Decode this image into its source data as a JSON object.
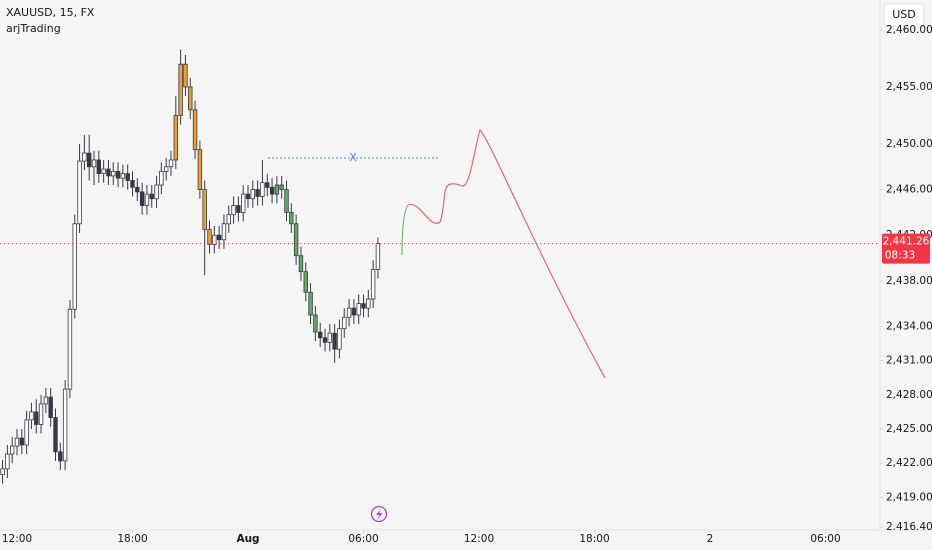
{
  "chart_data": {
    "type": "candlestick",
    "title": "XAUUSD, 15, FX",
    "subtitle": "arjTrading",
    "currency": "USD",
    "drawing_label": "X",
    "last_price_label": "2,441.26",
    "countdown": "08:33",
    "xlim": [
      -0.883,
      44.83
    ],
    "xticks": [
      {
        "value": 0,
        "label": "12:00"
      },
      {
        "value": 6,
        "label": "18:00"
      },
      {
        "value": 12,
        "label": "Aug"
      },
      {
        "value": 18,
        "label": "06:00"
      },
      {
        "value": 24,
        "label": "12:00"
      },
      {
        "value": 30,
        "label": "18:00"
      },
      {
        "value": 36,
        "label": "2"
      },
      {
        "value": 42,
        "label": "06:00"
      }
    ],
    "ylim": [
      2416.14,
      2462.63
    ],
    "yticks": [
      {
        "value": 2460,
        "label": "2,460.00"
      },
      {
        "value": 2455,
        "label": "2,455.00"
      },
      {
        "value": 2450,
        "label": "2,450.00"
      },
      {
        "value": 2446,
        "label": "2,446.00"
      },
      {
        "value": 2442,
        "label": "2,442.00"
      },
      {
        "value": 2438,
        "label": "2,438.00"
      },
      {
        "value": 2434,
        "label": "2,434.00"
      },
      {
        "value": 2431,
        "label": "2,431.00"
      },
      {
        "value": 2428,
        "label": "2,428.00"
      },
      {
        "value": 2425,
        "label": "2,425.00"
      },
      {
        "value": 2422,
        "label": "2,422.00"
      },
      {
        "value": 2419,
        "label": "2,419.00"
      },
      {
        "value": 2416.4,
        "label": "2.416.40"
      }
    ],
    "x": [
      -0.75,
      -0.5,
      -0.25,
      0,
      0.25,
      0.5,
      0.75,
      1,
      1.25,
      1.5,
      1.75,
      2,
      2.25,
      2.5,
      2.75,
      3,
      3.25,
      3.5,
      3.75,
      4,
      4.25,
      4.5,
      4.75,
      5,
      5.25,
      5.5,
      5.75,
      6,
      6.25,
      6.5,
      6.75,
      7,
      7.25,
      7.5,
      7.75,
      8,
      8.25,
      8.5,
      8.75,
      9,
      9.25,
      9.5,
      9.75,
      10,
      10.25,
      10.5,
      10.75,
      11,
      11.25,
      11.5,
      11.75,
      12,
      12.25,
      12.5,
      12.75,
      13,
      13.25,
      13.5,
      13.75,
      14,
      14.25,
      14.5,
      14.75,
      15,
      15.25,
      15.5,
      15.75,
      16,
      16.25,
      16.5,
      16.75,
      17,
      17.25,
      17.5,
      17.75,
      18,
      18.25,
      18.5,
      18.75
    ],
    "open": [
      2421.0,
      2421.5,
      2422.8,
      2423.5,
      2424.2,
      2423.6,
      2425.8,
      2426.5,
      2425.4,
      2427.2,
      2427.8,
      2426.0,
      2423.0,
      2422.2,
      2428.5,
      2435.5,
      2443.0,
      2448.5,
      2449.2,
      2448.0,
      2448.6,
      2447.4,
      2447.8,
      2447.2,
      2447.6,
      2447.0,
      2447.4,
      2446.8,
      2446.2,
      2445.8,
      2444.6,
      2445.6,
      2445.2,
      2446.4,
      2447.6,
      2448.0,
      2448.6,
      2452.5,
      2457.0,
      2455.0,
      2453.0,
      2449.5,
      2446.0,
      2442.5,
      2441.2,
      2442.0,
      2441.6,
      2443.0,
      2443.8,
      2444.6,
      2444.0,
      2445.6,
      2445.2,
      2446.0,
      2445.4,
      2446.6,
      2446.2,
      2445.6,
      2446.4,
      2446.0,
      2444.0,
      2443.0,
      2440.2,
      2438.8,
      2437.0,
      2435.0,
      2433.5,
      2433.0,
      2432.6,
      2433.4,
      2432.0,
      2433.8,
      2434.8,
      2435.6,
      2435.0,
      2436.0,
      2435.6,
      2436.4,
      2439.0
    ],
    "high": [
      2422.3,
      2423.6,
      2424.3,
      2425.0,
      2425.0,
      2426.6,
      2427.3,
      2427.6,
      2428.0,
      2428.6,
      2428.6,
      2426.8,
      2423.8,
      2429.3,
      2436.3,
      2443.8,
      2450.0,
      2450.8,
      2450.8,
      2449.4,
      2449.4,
      2448.6,
      2448.6,
      2448.4,
      2448.4,
      2448.2,
      2448.2,
      2447.6,
      2447.0,
      2446.6,
      2446.4,
      2446.4,
      2447.2,
      2448.4,
      2448.8,
      2449.4,
      2454.2,
      2458.3,
      2457.8,
      2455.8,
      2453.8,
      2450.3,
      2446.8,
      2443.3,
      2442.8,
      2442.8,
      2443.8,
      2444.6,
      2445.4,
      2445.4,
      2446.4,
      2446.4,
      2446.8,
      2446.8,
      2448.6,
      2447.4,
      2447.0,
      2447.2,
      2447.2,
      2446.8,
      2444.8,
      2443.8,
      2441.0,
      2439.6,
      2437.8,
      2435.8,
      2434.3,
      2433.8,
      2434.2,
      2434.2,
      2434.6,
      2435.6,
      2436.4,
      2436.4,
      2436.8,
      2436.8,
      2437.2,
      2439.8,
      2441.8
    ],
    "low": [
      2420.2,
      2420.7,
      2422.0,
      2422.7,
      2422.8,
      2422.8,
      2425.0,
      2424.6,
      2424.6,
      2426.4,
      2425.2,
      2422.2,
      2421.4,
      2421.4,
      2427.7,
      2434.7,
      2442.2,
      2447.7,
      2446.8,
      2446.4,
      2446.6,
      2446.6,
      2446.4,
      2446.4,
      2446.2,
      2446.2,
      2446.0,
      2445.4,
      2445.0,
      2443.8,
      2443.8,
      2444.4,
      2444.4,
      2445.6,
      2446.8,
      2447.2,
      2447.8,
      2451.7,
      2454.2,
      2452.2,
      2448.7,
      2445.2,
      2438.5,
      2440.4,
      2440.4,
      2440.8,
      2440.8,
      2442.2,
      2443.0,
      2443.2,
      2443.2,
      2444.4,
      2444.4,
      2444.6,
      2444.6,
      2445.4,
      2444.8,
      2444.8,
      2445.2,
      2443.2,
      2442.2,
      2439.4,
      2438.0,
      2436.2,
      2434.2,
      2432.7,
      2432.2,
      2431.8,
      2431.8,
      2430.8,
      2431.2,
      2433.0,
      2434.0,
      2434.2,
      2434.2,
      2434.8,
      2434.8,
      2435.6,
      2438.2
    ],
    "close": [
      2421.5,
      2422.8,
      2423.5,
      2424.2,
      2423.6,
      2425.8,
      2426.5,
      2425.4,
      2427.2,
      2427.8,
      2426.0,
      2423.0,
      2422.2,
      2428.5,
      2435.5,
      2443.0,
      2448.5,
      2449.2,
      2448.0,
      2448.6,
      2447.4,
      2447.8,
      2447.2,
      2447.6,
      2447.0,
      2447.4,
      2446.8,
      2446.2,
      2445.8,
      2444.6,
      2445.6,
      2445.2,
      2446.4,
      2447.6,
      2448.0,
      2448.6,
      2452.5,
      2457.0,
      2455.0,
      2453.0,
      2449.5,
      2446.0,
      2442.5,
      2441.2,
      2442.0,
      2441.6,
      2443.0,
      2443.8,
      2444.6,
      2444.0,
      2445.6,
      2445.2,
      2446.0,
      2445.4,
      2446.6,
      2446.2,
      2445.6,
      2446.4,
      2446.0,
      2444.0,
      2443.0,
      2440.2,
      2438.8,
      2437.0,
      2435.0,
      2433.5,
      2433.0,
      2432.6,
      2433.4,
      2432.0,
      2433.8,
      2434.8,
      2435.6,
      2435.0,
      2436.0,
      2435.6,
      2436.4,
      2439.0,
      2441.26
    ],
    "colors": [
      "#ffffff",
      "#ffffff",
      "#ffffff",
      "#ffffff",
      "#363a45",
      "#ffffff",
      "#ffffff",
      "#363a45",
      "#ffffff",
      "#ffffff",
      "#363a45",
      "#363a45",
      "#363a45",
      "#ffffff",
      "#ffffff",
      "#ffffff",
      "#ffffff",
      "#ffffff",
      "#363a45",
      "#ffffff",
      "#363a45",
      "#ffffff",
      "#363a45",
      "#ffffff",
      "#363a45",
      "#ffffff",
      "#363a45",
      "#363a45",
      "#363a45",
      "#363a45",
      "#ffffff",
      "#363a45",
      "#ffffff",
      "#ffffff",
      "#ffffff",
      "#ffffff",
      "#f0a030",
      "#f0a030",
      "#f0a030",
      "#f0a030",
      "#f0a030",
      "#f0a030",
      "#f0a030",
      "#f0a030",
      "#ffffff",
      "#363a45",
      "#ffffff",
      "#ffffff",
      "#ffffff",
      "#363a45",
      "#ffffff",
      "#363a45",
      "#ffffff",
      "#363a45",
      "#ffffff",
      "#363a45",
      "#363a45",
      "#5fae5f",
      "#5fae5f",
      "#5fae5f",
      "#5fae5f",
      "#5fae5f",
      "#5fae5f",
      "#5fae5f",
      "#5fae5f",
      "#5fae5f",
      "#363a45",
      "#363a45",
      "#ffffff",
      "#363a45",
      "#ffffff",
      "#ffffff",
      "#ffffff",
      "#363a45",
      "#ffffff",
      "#363a45",
      "#ffffff",
      "#ffffff",
      "#ffffff"
    ],
    "wick_color": "#363a45",
    "last_price_color": "#f23645"
  }
}
